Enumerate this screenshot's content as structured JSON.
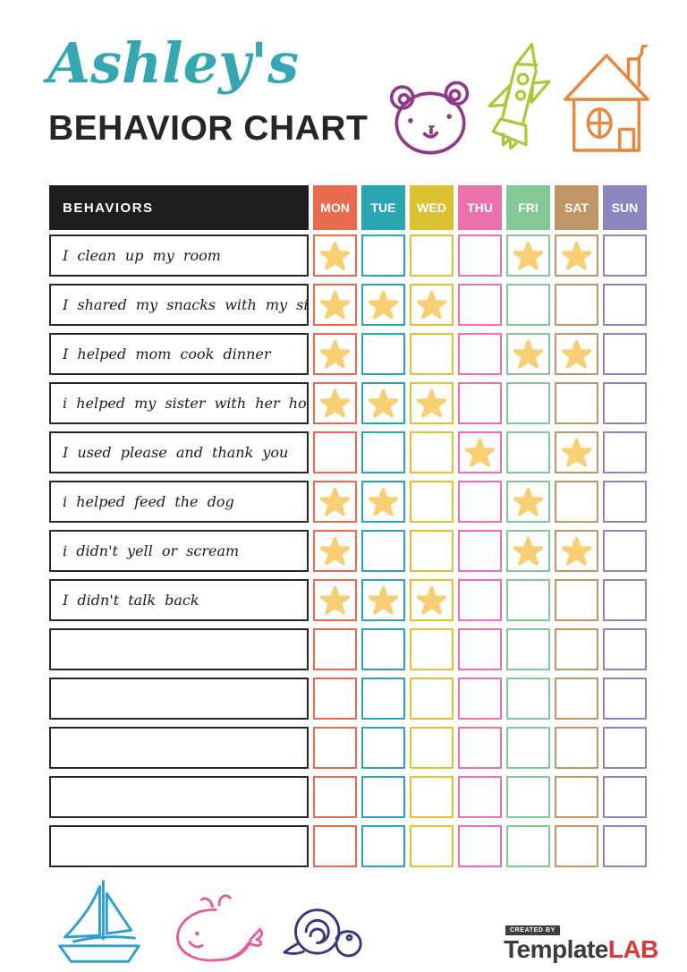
{
  "header": {
    "script_title": "Ashley's",
    "main_title": "BEHAVIOR CHART"
  },
  "colors": {
    "title_script": "#35A7B2",
    "title_dark": "#262626",
    "header_bg": "#1E1E1E",
    "star": "#F8CF72",
    "bear": "#8E3A86",
    "rocket": "#A9C938",
    "house": "#E5873C",
    "boat": "#2F9FD0",
    "whale": "#E75A9B",
    "snail": "#37377F",
    "brand_dark": "#3B3B3B",
    "brand_red": "#D63B36"
  },
  "table": {
    "behaviors_header": "BEHAVIORS",
    "days": [
      {
        "label": "MON",
        "color": "#E96A4F"
      },
      {
        "label": "TUE",
        "color": "#2BA4B4"
      },
      {
        "label": "WED",
        "color": "#DCC133"
      },
      {
        "label": "THU",
        "color": "#EC6FAE"
      },
      {
        "label": "FRI",
        "color": "#85C897"
      },
      {
        "label": "SAT",
        "color": "#BF9668"
      },
      {
        "label": "SUN",
        "color": "#8A87C0"
      }
    ],
    "rows": [
      {
        "label": "I clean up my room",
        "stars": [
          1,
          0,
          0,
          0,
          1,
          1,
          0
        ]
      },
      {
        "label": "I shared my snacks with my sister",
        "stars": [
          1,
          1,
          1,
          0,
          0,
          0,
          0
        ]
      },
      {
        "label": "I helped mom cook dinner",
        "stars": [
          1,
          0,
          0,
          0,
          1,
          1,
          0
        ]
      },
      {
        "label": "i helped my sister with her homework",
        "stars": [
          1,
          1,
          1,
          0,
          0,
          0,
          0
        ]
      },
      {
        "label": "I used please and thank you",
        "stars": [
          0,
          0,
          0,
          1,
          0,
          1,
          0
        ]
      },
      {
        "label": "i helped feed the dog",
        "stars": [
          1,
          1,
          0,
          0,
          1,
          0,
          0
        ]
      },
      {
        "label": "i didn't yell or scream",
        "stars": [
          1,
          0,
          0,
          0,
          1,
          1,
          0
        ]
      },
      {
        "label": "I didn't talk back",
        "stars": [
          1,
          1,
          1,
          0,
          0,
          0,
          0
        ]
      },
      {
        "label": "",
        "stars": [
          0,
          0,
          0,
          0,
          0,
          0,
          0
        ]
      },
      {
        "label": "",
        "stars": [
          0,
          0,
          0,
          0,
          0,
          0,
          0
        ]
      },
      {
        "label": "",
        "stars": [
          0,
          0,
          0,
          0,
          0,
          0,
          0
        ]
      },
      {
        "label": "",
        "stars": [
          0,
          0,
          0,
          0,
          0,
          0,
          0
        ]
      },
      {
        "label": "",
        "stars": [
          0,
          0,
          0,
          0,
          0,
          0,
          0
        ]
      }
    ]
  },
  "footer": {
    "created_by": "CREATED BY",
    "brand_primary": "Template",
    "brand_accent": "LAB"
  }
}
